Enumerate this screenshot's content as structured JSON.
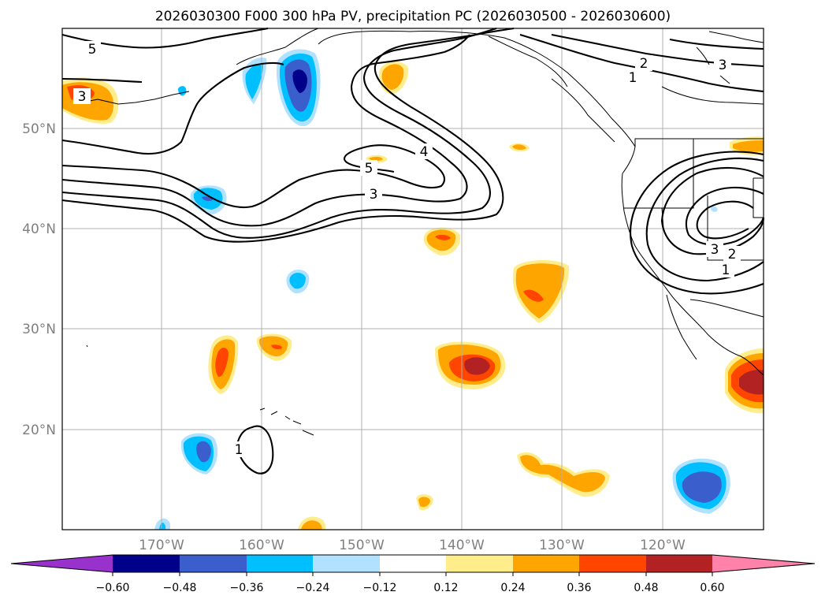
{
  "title": "2026030300 F000 300 hPa PV, precipitation PC (2026030500 - 2026030600)",
  "map": {
    "lon_labels": [
      "170°W",
      "160°W",
      "150°W",
      "140°W",
      "130°W",
      "120°W"
    ],
    "lat_labels": [
      "50°N",
      "40°N",
      "30°N",
      "20°N"
    ],
    "contour_labels": [
      "5",
      "3",
      "2",
      "1",
      "3",
      "4",
      "5",
      "3",
      "3",
      "2",
      "1",
      "1"
    ]
  },
  "colorbar": {
    "levels": [
      "−0.60",
      "−0.48",
      "−0.36",
      "−0.24",
      "−0.12",
      "0.12",
      "0.24",
      "0.36",
      "0.48",
      "0.60"
    ],
    "colors": {
      "under": "#9932cc",
      "c1": "#00008b",
      "c2": "#3a5fcd",
      "c3": "#00bfff",
      "c4": "#b0e2ff",
      "c5": "#ffffff",
      "c6": "#ffec8b",
      "c7": "#ffa500",
      "c8": "#ff4500",
      "c9": "#b22222",
      "over": "#ff82ab"
    }
  }
}
